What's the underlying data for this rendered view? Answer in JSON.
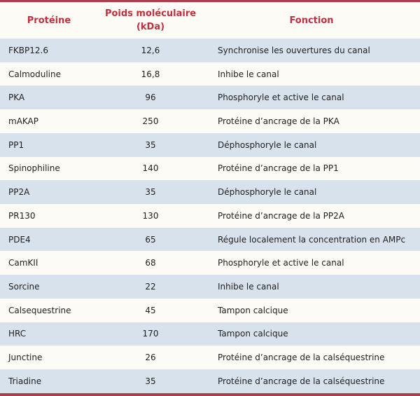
{
  "header": {
    "protein": "Protéine",
    "weight_line1": "Poids moléculaire",
    "weight_line2": "(kDa)",
    "function": "Fonction"
  },
  "rows": [
    {
      "protein": "FKBP12.6",
      "weight": "12,6",
      "function": "Synchronise les ouvertures du canal"
    },
    {
      "protein": "Calmoduline",
      "weight": "16,8",
      "function": "Inhibe le canal"
    },
    {
      "protein": "PKA",
      "weight": "96",
      "function": "Phosphoryle et active le canal"
    },
    {
      "protein": "mAKAP",
      "weight": "250",
      "function": "Protéine d’ancrage de la PKA"
    },
    {
      "protein": "PP1",
      "weight": "35",
      "function": "Déphosphoryle le canal"
    },
    {
      "protein": "Spinophiline",
      "weight": "140",
      "function": "Protéine d’ancrage de la PP1"
    },
    {
      "protein": "PP2A",
      "weight": "35",
      "function": "Déphosphoryle le canal"
    },
    {
      "protein": "PR130",
      "weight": "130",
      "function": "Protéine d’ancrage de la PP2A"
    },
    {
      "protein": "PDE4",
      "weight": "65",
      "function": "Régule localement la concentration en AMPc"
    },
    {
      "protein": "CamKII",
      "weight": "68",
      "function": "Phosphoryle et active le canal"
    },
    {
      "protein": "Sorcine",
      "weight": "22",
      "function": "Inhibe le canal"
    },
    {
      "protein": "Calsequestrine",
      "weight": "45",
      "function": "Tampon calcique"
    },
    {
      "protein": "HRC",
      "weight": "170",
      "function": "Tampon calcique"
    },
    {
      "protein": "Junctine",
      "weight": "26",
      "function": "Protéine d’ancrage de la calséquestrine"
    },
    {
      "protein": "Triadine",
      "weight": "35",
      "function": "Protéine d’ancrage de la calséquestrine"
    }
  ]
}
